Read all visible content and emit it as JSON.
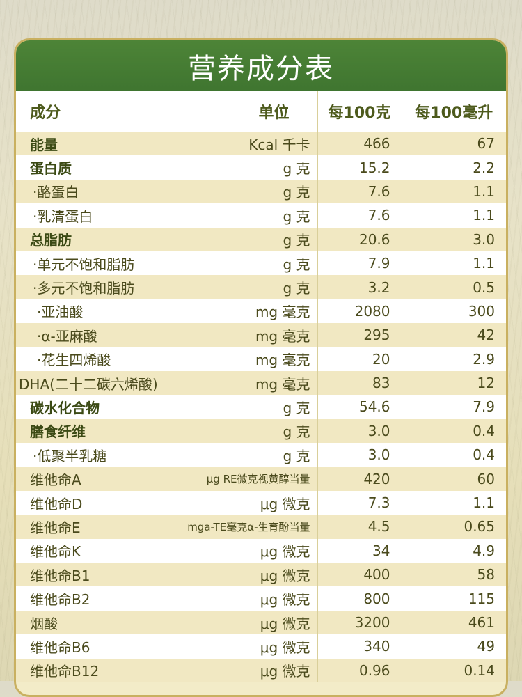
{
  "title": "营养成分表",
  "headers": {
    "name": "成分",
    "unit": "单位",
    "per100g": "每100克",
    "per100ml": "每100毫升"
  },
  "rows": [
    {
      "name": "能量",
      "unit": "Kcal 千卡",
      "per100g": "466",
      "per100ml": "67",
      "style": "bold"
    },
    {
      "name": "蛋白质",
      "unit": "g 克",
      "per100g": "15.2",
      "per100ml": "2.2",
      "style": "bold"
    },
    {
      "name": "·酪蛋白",
      "unit": "g 克",
      "per100g": "7.6",
      "per100ml": "1.1",
      "style": "sub"
    },
    {
      "name": "·乳清蛋白",
      "unit": "g 克",
      "per100g": "7.6",
      "per100ml": "1.1",
      "style": "sub"
    },
    {
      "name": "总脂肪",
      "unit": "g 克",
      "per100g": "20.6",
      "per100ml": "3.0",
      "style": "bold"
    },
    {
      "name": "·单元不饱和脂肪",
      "unit": "g 克",
      "per100g": "7.9",
      "per100ml": "1.1",
      "style": "sub"
    },
    {
      "name": "·多元不饱和脂肪",
      "unit": "g 克",
      "per100g": "3.2",
      "per100ml": "0.5",
      "style": "sub"
    },
    {
      "name": "·亚油酸",
      "unit": "mg 毫克",
      "per100g": "2080",
      "per100ml": "300",
      "style": "subsub"
    },
    {
      "name": "·α-亚麻酸",
      "unit": "mg 毫克",
      "per100g": "295",
      "per100ml": "42",
      "style": "subsub"
    },
    {
      "name": "·花生四烯酸",
      "unit": "mg 毫克",
      "per100g": "20",
      "per100ml": "2.9",
      "style": "subsub"
    },
    {
      "name": "DHA(二十二碳六烯酸)",
      "unit": "mg 毫克",
      "per100g": "83",
      "per100ml": "12",
      "style": "flush"
    },
    {
      "name": "碳水化合物",
      "unit": "g 克",
      "per100g": "54.6",
      "per100ml": "7.9",
      "style": "bold"
    },
    {
      "name": "膳食纤维",
      "unit": "g 克",
      "per100g": "3.0",
      "per100ml": "0.4",
      "style": "bold"
    },
    {
      "name": "·低聚半乳糖",
      "unit": "g 克",
      "per100g": "3.0",
      "per100ml": "0.4",
      "style": "sub"
    },
    {
      "name": "维他命A",
      "unit": "μg RE微克视黄醇当量",
      "per100g": "420",
      "per100ml": "60",
      "style": "plain",
      "unitSize": "small"
    },
    {
      "name": "维他命D",
      "unit": "μg 微克",
      "per100g": "7.3",
      "per100ml": "1.1",
      "style": "plain"
    },
    {
      "name": "维他命E",
      "unit": "mga-TE毫克α-生育酚当量",
      "per100g": "4.5",
      "per100ml": "0.65",
      "style": "plain",
      "unitSize": "small"
    },
    {
      "name": "维他命K",
      "unit": "μg 微克",
      "per100g": "34",
      "per100ml": "4.9",
      "style": "plain"
    },
    {
      "name": "维他命B1",
      "unit": "μg 微克",
      "per100g": "400",
      "per100ml": "58",
      "style": "plain"
    },
    {
      "name": "维他命B2",
      "unit": "μg 微克",
      "per100g": "800",
      "per100ml": "115",
      "style": "plain"
    },
    {
      "name": "烟酸",
      "unit": "μg 微克",
      "per100g": "3200",
      "per100ml": "461",
      "style": "plain"
    },
    {
      "name": "维他命B6",
      "unit": "μg 微克",
      "per100g": "340",
      "per100ml": "49",
      "style": "plain"
    },
    {
      "name": "维他命B12",
      "unit": "μg 微克",
      "per100g": "0.96",
      "per100ml": "0.14",
      "style": "plain"
    }
  ]
}
